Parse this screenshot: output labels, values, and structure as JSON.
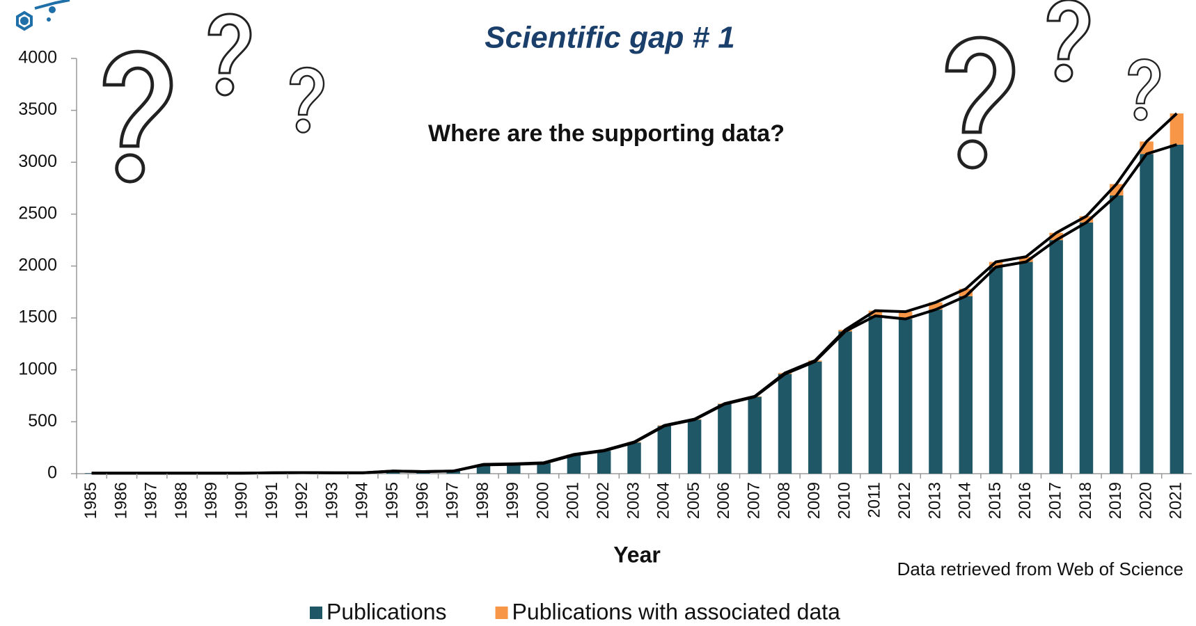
{
  "chart_data": {
    "type": "stacked_bar_line",
    "title": "Scientific gap # 1",
    "subtitle": "Where are the supporting data?",
    "x_label": "Year",
    "source": "Data retrieved from Web of Science",
    "categories": [
      "1985",
      "1986",
      "1987",
      "1988",
      "1989",
      "1990",
      "1991",
      "1992",
      "1993",
      "1994",
      "1995",
      "1996",
      "1997",
      "1998",
      "1999",
      "2000",
      "2001",
      "2002",
      "2003",
      "2004",
      "2005",
      "2006",
      "2007",
      "2008",
      "2009",
      "2010",
      "2011",
      "2012",
      "2013",
      "2014",
      "2015",
      "2016",
      "2017",
      "2018",
      "2019",
      "2020",
      "2021"
    ],
    "series": [
      {
        "name": "Publications",
        "color": "#1f5766",
        "values": [
          5,
          5,
          5,
          5,
          5,
          5,
          8,
          10,
          8,
          8,
          25,
          20,
          25,
          85,
          90,
          100,
          180,
          220,
          300,
          460,
          520,
          670,
          740,
          960,
          1080,
          1370,
          1520,
          1490,
          1580,
          1710,
          1990,
          2040,
          2250,
          2420,
          2680,
          3080,
          3170
        ]
      },
      {
        "name": "Publications with associated data",
        "color": "#f79646",
        "values": [
          0,
          0,
          0,
          0,
          0,
          0,
          0,
          0,
          0,
          0,
          0,
          0,
          0,
          5,
          5,
          5,
          5,
          5,
          5,
          5,
          5,
          5,
          5,
          10,
          10,
          15,
          50,
          70,
          70,
          70,
          50,
          50,
          70,
          60,
          110,
          120,
          300
        ]
      }
    ],
    "ylim": [
      0,
      4000
    ],
    "yticks": [
      0,
      500,
      1000,
      1500,
      2000,
      2500,
      3000,
      3500,
      4000
    ],
    "legend": "bottom"
  }
}
